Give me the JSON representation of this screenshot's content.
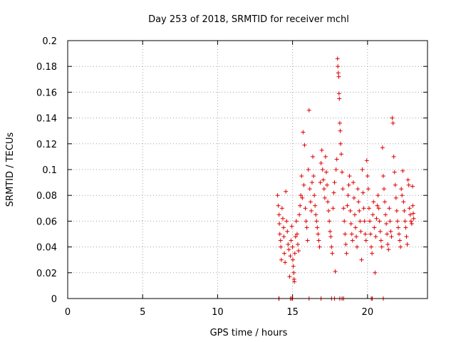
{
  "chart_data": {
    "type": "scatter",
    "title": "Day 253 of 2018, SRMTID for receiver mchl",
    "xlabel": "GPS time / hours",
    "ylabel": "SRMTID / TECUs",
    "xlim": [
      0,
      24
    ],
    "ylim": [
      0,
      0.2
    ],
    "x_ticks": [
      0,
      5,
      10,
      15,
      20
    ],
    "x_tick_labels": [
      "0",
      "5",
      "10",
      "15",
      "20"
    ],
    "y_ticks": [
      0,
      0.02,
      0.04,
      0.06,
      0.08,
      0.1,
      0.12,
      0.14,
      0.16,
      0.18,
      0.2
    ],
    "y_tick_labels": [
      "0",
      "0.02",
      "0.04",
      "0.06",
      "0.08",
      "0.1",
      "0.12",
      "0.14",
      "0.16",
      "0.18",
      "0.2"
    ],
    "grid": true,
    "marker": "+",
    "color": "#e00000",
    "series": [
      {
        "name": "SRMTID",
        "points": [
          [
            14.0,
            0.08
          ],
          [
            14.05,
            0.072
          ],
          [
            14.1,
            0.065
          ],
          [
            14.12,
            0.058
          ],
          [
            14.15,
            0.05
          ],
          [
            14.2,
            0.045
          ],
          [
            14.22,
            0.04
          ],
          [
            14.25,
            0.03
          ],
          [
            14.3,
            0.07
          ],
          [
            14.35,
            0.062
          ],
          [
            14.4,
            0.055
          ],
          [
            14.42,
            0.048
          ],
          [
            14.45,
            0.035
          ],
          [
            14.5,
            0.028
          ],
          [
            14.55,
            0.083
          ],
          [
            14.6,
            0.06
          ],
          [
            14.65,
            0.052
          ],
          [
            14.7,
            0.042
          ],
          [
            14.75,
            0.038
          ],
          [
            14.8,
            0.017
          ],
          [
            14.85,
            0.033
          ],
          [
            14.9,
            0.045
          ],
          [
            14.95,
            0.056
          ],
          [
            15.0,
            0.04
          ],
          [
            15.02,
            0.03
          ],
          [
            15.05,
            0.025
          ],
          [
            15.08,
            0.02
          ],
          [
            15.1,
            0.015
          ],
          [
            15.12,
            0.013
          ],
          [
            15.15,
            0.035
          ],
          [
            15.2,
            0.048
          ],
          [
            15.25,
            0.06
          ],
          [
            15.3,
            0.05
          ],
          [
            15.35,
            0.042
          ],
          [
            15.4,
            0.037
          ],
          [
            15.45,
            0.065
          ],
          [
            15.5,
            0.072
          ],
          [
            15.55,
            0.08
          ],
          [
            15.6,
            0.095
          ],
          [
            15.65,
            0.078
          ],
          [
            15.7,
            0.129
          ],
          [
            15.75,
            0.088
          ],
          [
            15.8,
            0.119
          ],
          [
            15.85,
            0.07
          ],
          [
            15.9,
            0.06
          ],
          [
            15.95,
            0.055
          ],
          [
            16.0,
            0.045
          ],
          [
            16.05,
            0.1
          ],
          [
            16.1,
            0.146
          ],
          [
            16.15,
            0.085
          ],
          [
            16.2,
            0.075
          ],
          [
            16.25,
            0.068
          ],
          [
            16.3,
            0.09
          ],
          [
            16.35,
            0.11
          ],
          [
            16.4,
            0.095
          ],
          [
            16.45,
            0.08
          ],
          [
            16.5,
            0.072
          ],
          [
            16.55,
            0.065
          ],
          [
            16.6,
            0.06
          ],
          [
            16.65,
            0.055
          ],
          [
            16.7,
            0.05
          ],
          [
            16.75,
            0.045
          ],
          [
            16.8,
            0.04
          ],
          [
            16.85,
            0.09
          ],
          [
            16.9,
            0.105
          ],
          [
            16.95,
            0.115
          ],
          [
            17.0,
            0.1
          ],
          [
            17.05,
            0.092
          ],
          [
            17.1,
            0.085
          ],
          [
            17.15,
            0.078
          ],
          [
            17.2,
            0.11
          ],
          [
            17.25,
            0.098
          ],
          [
            17.3,
            0.088
          ],
          [
            17.35,
            0.075
          ],
          [
            17.4,
            0.068
          ],
          [
            17.45,
            0.06
          ],
          [
            17.5,
            0.052
          ],
          [
            17.55,
            0.048
          ],
          [
            17.6,
            0.04
          ],
          [
            17.65,
            0.035
          ],
          [
            17.7,
            0.07
          ],
          [
            17.75,
            0.082
          ],
          [
            17.8,
            0.09
          ],
          [
            17.85,
            0.021
          ],
          [
            17.9,
            0.1
          ],
          [
            17.95,
            0.108
          ],
          [
            18.0,
            0.186
          ],
          [
            18.02,
            0.18
          ],
          [
            18.05,
            0.175
          ],
          [
            18.08,
            0.172
          ],
          [
            18.1,
            0.159
          ],
          [
            18.12,
            0.155
          ],
          [
            18.15,
            0.136
          ],
          [
            18.18,
            0.13
          ],
          [
            18.2,
            0.12
          ],
          [
            18.25,
            0.112
          ],
          [
            18.3,
            0.098
          ],
          [
            18.35,
            0.085
          ],
          [
            18.4,
            0.07
          ],
          [
            18.45,
            0.06
          ],
          [
            18.5,
            0.05
          ],
          [
            18.55,
            0.042
          ],
          [
            18.6,
            0.035
          ],
          [
            18.65,
            0.072
          ],
          [
            18.7,
            0.08
          ],
          [
            18.75,
            0.088
          ],
          [
            18.8,
            0.095
          ],
          [
            18.85,
            0.068
          ],
          [
            18.9,
            0.058
          ],
          [
            18.95,
            0.05
          ],
          [
            19.0,
            0.045
          ],
          [
            19.05,
            0.09
          ],
          [
            19.1,
            0.078
          ],
          [
            19.15,
            0.065
          ],
          [
            19.2,
            0.055
          ],
          [
            19.25,
            0.048
          ],
          [
            19.3,
            0.04
          ],
          [
            19.35,
            0.085
          ],
          [
            19.4,
            0.075
          ],
          [
            19.45,
            0.068
          ],
          [
            19.5,
            0.06
          ],
          [
            19.55,
            0.052
          ],
          [
            19.6,
            0.03
          ],
          [
            19.65,
            0.1
          ],
          [
            19.7,
            0.082
          ],
          [
            19.75,
            0.07
          ],
          [
            19.8,
            0.06
          ],
          [
            19.85,
            0.05
          ],
          [
            19.9,
            0.045
          ],
          [
            19.95,
            0.107
          ],
          [
            20.0,
            0.095
          ],
          [
            20.05,
            0.085
          ],
          [
            20.1,
            0.07
          ],
          [
            20.15,
            0.06
          ],
          [
            20.2,
            0.05
          ],
          [
            20.25,
            0.04
          ],
          [
            20.3,
            0.035
          ],
          [
            20.35,
            0.065
          ],
          [
            20.4,
            0.075
          ],
          [
            20.45,
            0.055
          ],
          [
            20.5,
            0.02
          ],
          [
            20.55,
            0.048
          ],
          [
            20.6,
            0.062
          ],
          [
            20.65,
            0.072
          ],
          [
            20.7,
            0.08
          ],
          [
            20.75,
            0.07
          ],
          [
            20.8,
            0.06
          ],
          [
            20.85,
            0.052
          ],
          [
            20.9,
            0.045
          ],
          [
            20.95,
            0.04
          ],
          [
            21.0,
            0.117
          ],
          [
            21.05,
            0.095
          ],
          [
            21.1,
            0.085
          ],
          [
            21.15,
            0.075
          ],
          [
            21.2,
            0.065
          ],
          [
            21.25,
            0.058
          ],
          [
            21.3,
            0.05
          ],
          [
            21.35,
            0.042
          ],
          [
            21.4,
            0.038
          ],
          [
            21.45,
            0.07
          ],
          [
            21.5,
            0.06
          ],
          [
            21.55,
            0.052
          ],
          [
            21.6,
            0.048
          ],
          [
            21.65,
            0.14
          ],
          [
            21.7,
            0.136
          ],
          [
            21.75,
            0.11
          ],
          [
            21.8,
            0.098
          ],
          [
            21.85,
            0.088
          ],
          [
            21.9,
            0.078
          ],
          [
            21.95,
            0.068
          ],
          [
            22.0,
            0.06
          ],
          [
            22.05,
            0.055
          ],
          [
            22.1,
            0.05
          ],
          [
            22.15,
            0.045
          ],
          [
            22.2,
            0.04
          ],
          [
            22.25,
            0.085
          ],
          [
            22.3,
            0.08
          ],
          [
            22.35,
            0.099
          ],
          [
            22.4,
            0.075
          ],
          [
            22.45,
            0.068
          ],
          [
            22.5,
            0.06
          ],
          [
            22.55,
            0.055
          ],
          [
            22.6,
            0.048
          ],
          [
            22.65,
            0.042
          ],
          [
            22.7,
            0.092
          ],
          [
            22.75,
            0.088
          ],
          [
            22.8,
            0.07
          ],
          [
            22.85,
            0.065
          ],
          [
            22.9,
            0.06
          ],
          [
            22.95,
            0.058
          ],
          [
            23.0,
            0.087
          ],
          [
            23.02,
            0.072
          ],
          [
            23.05,
            0.066
          ],
          [
            23.08,
            0.062
          ],
          [
            14.08,
            0.0
          ],
          [
            14.1,
            0.0
          ],
          [
            14.85,
            0.0
          ],
          [
            14.95,
            0.0
          ],
          [
            15.0,
            0.0
          ],
          [
            16.1,
            0.0
          ],
          [
            16.9,
            0.0
          ],
          [
            17.6,
            0.0
          ],
          [
            17.8,
            0.0
          ],
          [
            18.15,
            0.0
          ],
          [
            18.3,
            0.0
          ],
          [
            18.4,
            0.0
          ],
          [
            20.25,
            0.0
          ],
          [
            20.32,
            0.0
          ],
          [
            21.05,
            0.0
          ]
        ]
      }
    ]
  }
}
